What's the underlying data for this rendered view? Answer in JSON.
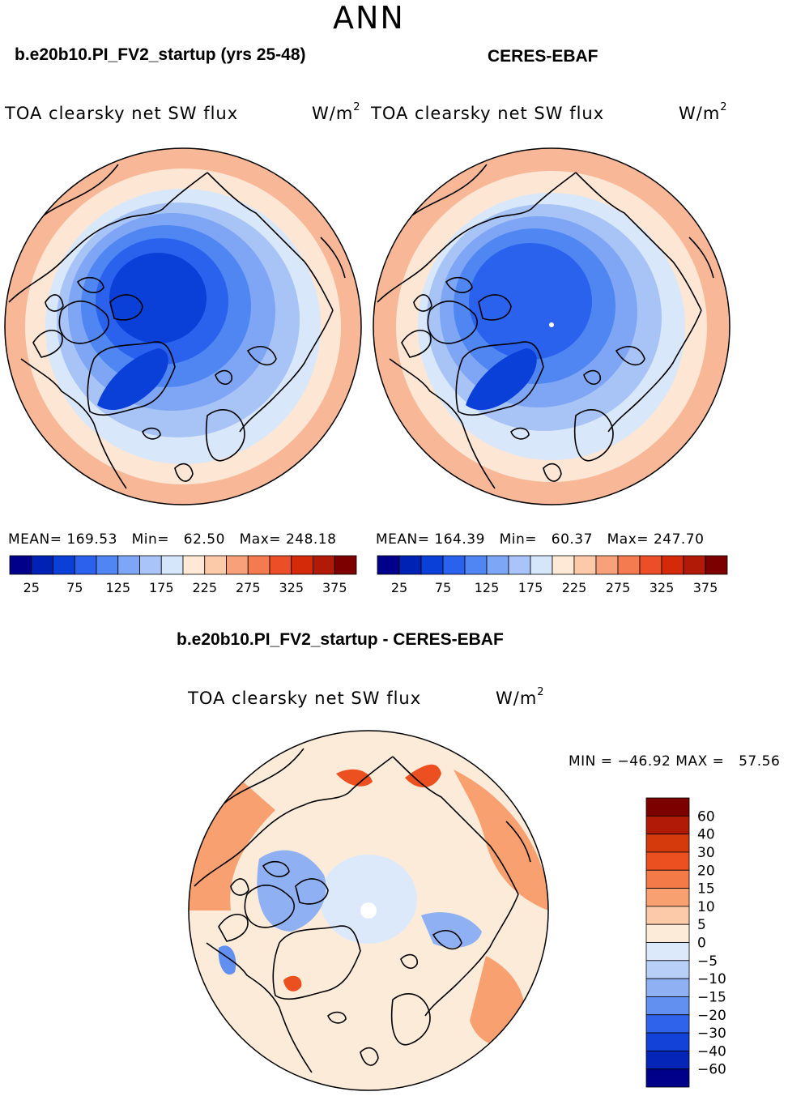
{
  "season": "ANN",
  "panels": [
    {
      "case": "b.e20b10.PI_FV2_startup (yrs 25-48)",
      "variable": "TOA clearsky net SW flux",
      "units_base": "W/m",
      "units_sup": "2",
      "stats": {
        "mean_label": "MEAN=",
        "mean": "169.53",
        "min_label": "Min=",
        "min": "62.50",
        "max_label": "Max=",
        "max": "248.18"
      }
    },
    {
      "case": "CERES-EBAF",
      "variable": "TOA clearsky net SW flux",
      "units_base": "W/m",
      "units_sup": "2",
      "stats": {
        "mean_label": "MEAN=",
        "mean": "164.39",
        "min_label": "Min=",
        "min": "60.37",
        "max_label": "Max=",
        "max": "247.70"
      }
    }
  ],
  "diff": {
    "case": "b.e20b10.PI_FV2_startup - CERES-EBAF",
    "variable": "TOA clearsky net SW flux",
    "units_base": "W/m",
    "units_sup": "2",
    "minmax": {
      "min_label": "MIN =",
      "min": "−46.92",
      "max_label": "MAX =",
      "max": "57.56"
    }
  },
  "colorbar_main": {
    "ticks": [
      "25",
      "75",
      "125",
      "175",
      "225",
      "275",
      "325",
      "375"
    ],
    "colors": [
      "#00008a",
      "#0022b4",
      "#0a3fd8",
      "#2a62ee",
      "#4f86f4",
      "#7ea6f6",
      "#a9c4f8",
      "#d6e6fa",
      "#fde9d6",
      "#fcc9a9",
      "#f8a07a",
      "#f47a50",
      "#ec4f28",
      "#d42a0a",
      "#b01a06",
      "#7c0000"
    ]
  },
  "colorbar_diff": {
    "labels": [
      "60",
      "40",
      "30",
      "20",
      "15",
      "10",
      "5",
      "0",
      "−5",
      "−10",
      "−15",
      "−20",
      "−30",
      "−40",
      "−60"
    ],
    "colors": [
      "#7c0000",
      "#b01a06",
      "#d43a0c",
      "#ec5020",
      "#f47a48",
      "#f8a070",
      "#fcc9a9",
      "#fdebd9",
      "#dce9fb",
      "#b8cff8",
      "#8fb1f4",
      "#6190f0",
      "#2f63ec",
      "#1242d8",
      "#0525b8",
      "#00008a"
    ]
  },
  "map_palette": {
    "land": "#000000",
    "outline": "#000000"
  }
}
